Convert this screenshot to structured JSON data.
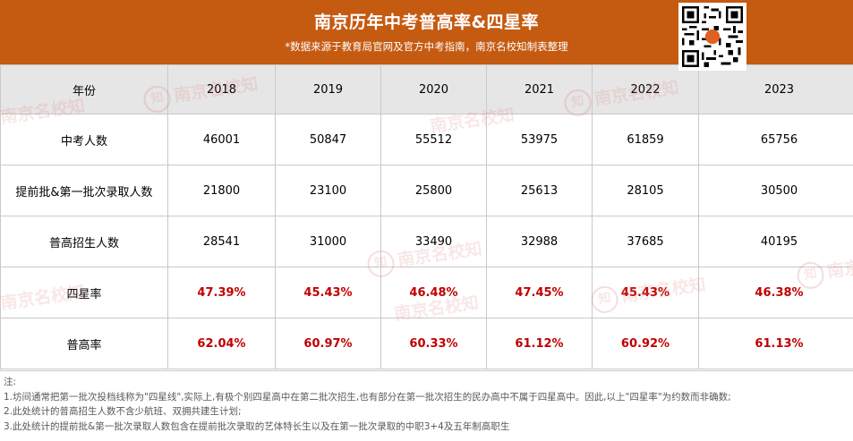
{
  "header": {
    "title": "南京历年中考普高率&四星率",
    "subtitle": "*数据来源于教育局官网及官方中考指南，南京名校知制表整理"
  },
  "table": {
    "corner_label": "年份",
    "years": [
      "2018",
      "2019",
      "2020",
      "2021",
      "2022",
      "2023"
    ],
    "rows": [
      {
        "label": "中考人数",
        "values": [
          "46001",
          "50847",
          "55512",
          "53975",
          "61859",
          "65756"
        ],
        "highlight": false
      },
      {
        "label": "提前批&第一批次录取人数",
        "values": [
          "21800",
          "23100",
          "25800",
          "25613",
          "28105",
          "30500"
        ],
        "highlight": false
      },
      {
        "label": "普高招生人数",
        "values": [
          "28541",
          "31000",
          "33490",
          "32988",
          "37685",
          "40195"
        ],
        "highlight": false
      },
      {
        "label": "四星率",
        "values": [
          "47.39%",
          "45.43%",
          "46.48%",
          "47.45%",
          "45.43%",
          "46.38%"
        ],
        "highlight": true
      },
      {
        "label": "普高率",
        "values": [
          "62.04%",
          "60.97%",
          "60.33%",
          "61.12%",
          "60.92%",
          "61.13%"
        ],
        "highlight": true
      }
    ]
  },
  "notes": [
    "注:",
    "1.坊间通常把第一批次投档线称为\"四星线\",实际上,有极个别四星高中在第二批次招生,也有部分在第一批次招生的民办高中不属于四星高中。因此,以上\"四星率\"为约数而非确数;",
    "2.此处统计的普高招生人数不含少航班、双拥共建生计划;",
    "3.此处统计的提前批&第一批次录取人数包含在提前批次录取的艺体特长生以及在第一批次录取的中职3+4及五年制高职生"
  ],
  "watermark": {
    "text": "南京名校知",
    "seal": "知"
  },
  "colors": {
    "header_bg": "#c55a11",
    "header_row_bg": "#e7e6e6",
    "highlight_text": "#c00000"
  },
  "icons": {
    "qr": "qr-code-icon"
  }
}
